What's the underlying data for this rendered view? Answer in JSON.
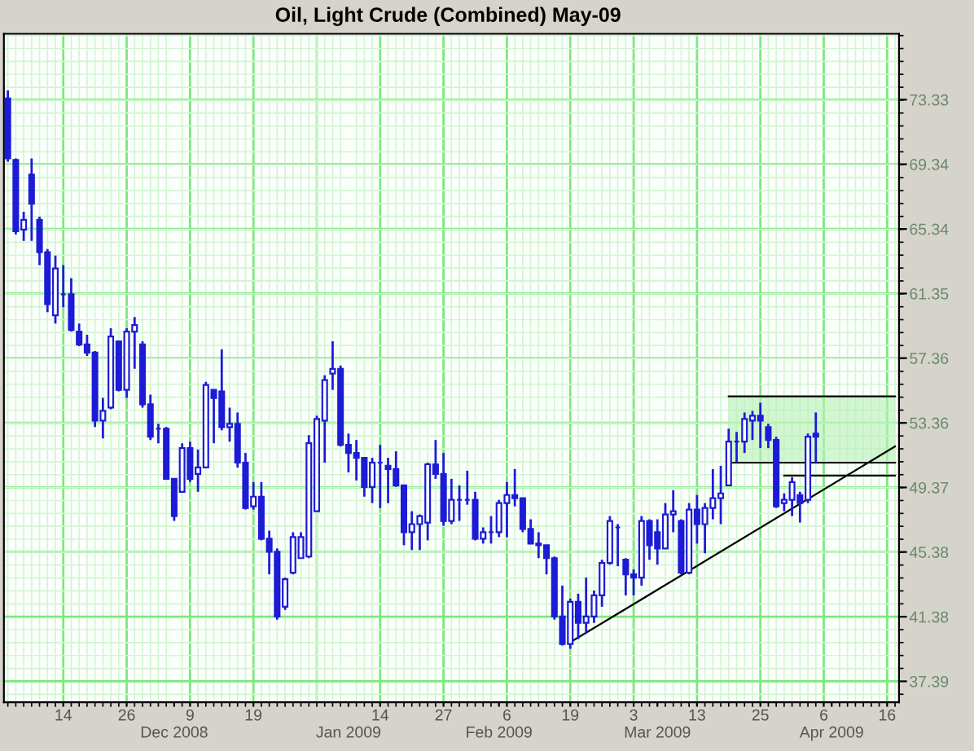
{
  "chart_data": {
    "type": "candlestick",
    "title": "Oil, Light Crude (Combined) May-09",
    "color": "#1c1cd6",
    "categories": [
      null,
      null,
      null,
      null,
      null,
      null,
      null,
      "14",
      null,
      null,
      null,
      null,
      null,
      null,
      null,
      "26",
      null,
      null,
      null,
      null,
      null,
      "\nDec 2008",
      null,
      "9",
      null,
      null,
      null,
      null,
      null,
      null,
      null,
      "19",
      null,
      null,
      null,
      null,
      null,
      null,
      null,
      null,
      null,
      null,
      null,
      "\nJan 2009",
      null,
      null,
      null,
      "14",
      null,
      null,
      null,
      null,
      null,
      null,
      null,
      "27",
      null,
      null,
      null,
      null,
      null,
      null,
      "\nFeb 2009",
      "6",
      null,
      null,
      null,
      null,
      null,
      null,
      null,
      "19",
      null,
      null,
      null,
      null,
      null,
      null,
      null,
      "3",
      null,
      null,
      "\nMar 2009",
      null,
      null,
      null,
      null,
      "13",
      null,
      null,
      null,
      null,
      null,
      null,
      null,
      "25",
      null,
      null,
      null,
      null,
      null,
      null,
      null,
      "6",
      "\nApr 2009",
      null,
      null,
      null,
      null,
      null,
      null,
      "16",
      null
    ],
    "ohlc": [
      [
        73.4,
        73.9,
        69.5,
        69.7
      ],
      [
        69.6,
        69.7,
        65.0,
        65.2
      ],
      [
        65.3,
        66.4,
        64.6,
        65.9
      ],
      [
        68.7,
        69.7,
        64.6,
        66.9
      ],
      [
        65.9,
        66.1,
        63.1,
        63.9
      ],
      [
        63.9,
        64.1,
        60.2,
        60.7
      ],
      [
        60.0,
        63.7,
        59.5,
        62.9
      ],
      [
        61.3,
        63.1,
        60.5,
        61.3
      ],
      [
        61.3,
        62.3,
        59.0,
        59.1
      ],
      [
        59.0,
        59.5,
        58.1,
        58.2
      ],
      [
        58.2,
        58.8,
        57.5,
        57.7
      ],
      [
        57.7,
        57.8,
        53.1,
        53.5
      ],
      [
        53.5,
        54.9,
        52.4,
        54.1
      ],
      [
        54.3,
        59.2,
        54.2,
        58.7
      ],
      [
        58.4,
        58.4,
        55.3,
        55.4
      ],
      [
        55.4,
        59.2,
        54.9,
        59.0
      ],
      [
        59.0,
        59.9,
        56.7,
        59.4
      ],
      [
        58.2,
        58.4,
        54.3,
        54.5
      ],
      [
        54.5,
        55.1,
        52.3,
        52.5
      ],
      [
        53.0,
        53.3,
        52.1,
        53.0
      ],
      [
        53.0,
        53.1,
        49.9,
        49.9
      ],
      [
        49.9,
        49.9,
        47.3,
        47.6
      ],
      [
        49.1,
        52.1,
        49.1,
        51.8
      ],
      [
        51.8,
        52.2,
        49.7,
        49.9
      ],
      [
        50.2,
        51.7,
        49.1,
        50.6
      ],
      [
        50.6,
        55.9,
        50.6,
        55.7
      ],
      [
        55.4,
        55.4,
        52.1,
        54.9
      ],
      [
        55.3,
        57.9,
        52.9,
        53.1
      ],
      [
        53.1,
        54.3,
        52.2,
        53.3
      ],
      [
        53.3,
        54.0,
        50.6,
        50.9
      ],
      [
        50.9,
        51.5,
        48.0,
        48.1
      ],
      [
        48.2,
        49.7,
        48.0,
        48.8
      ],
      [
        48.8,
        49.7,
        46.1,
        46.2
      ],
      [
        46.2,
        46.7,
        44.0,
        45.4
      ],
      [
        45.4,
        45.6,
        41.2,
        41.4
      ],
      [
        42.0,
        43.8,
        41.8,
        43.7
      ],
      [
        44.1,
        46.6,
        44.0,
        46.3
      ],
      [
        45.0,
        46.6,
        45.0,
        46.3
      ],
      [
        45.1,
        52.6,
        45.0,
        52.1
      ],
      [
        47.9,
        53.8,
        47.9,
        53.6
      ],
      [
        53.5,
        56.3,
        50.9,
        56.0
      ],
      [
        56.4,
        58.4,
        55.4,
        56.7
      ],
      [
        56.7,
        56.9,
        51.9,
        52.0
      ],
      [
        52.0,
        52.7,
        50.3,
        51.5
      ],
      [
        51.5,
        52.3,
        49.8,
        51.2
      ],
      [
        51.2,
        51.2,
        48.8,
        49.4
      ],
      [
        49.4,
        51.2,
        48.4,
        50.9
      ],
      [
        50.9,
        52.0,
        48.1,
        50.9
      ],
      [
        50.7,
        51.2,
        48.4,
        50.5
      ],
      [
        50.5,
        51.6,
        49.4,
        49.5
      ],
      [
        49.5,
        49.5,
        45.8,
        46.6
      ],
      [
        46.6,
        47.9,
        45.5,
        47.1
      ],
      [
        47.1,
        47.7,
        45.5,
        47.6
      ],
      [
        47.2,
        50.9,
        46.1,
        50.8
      ],
      [
        50.8,
        52.3,
        49.9,
        50.2
      ],
      [
        50.2,
        51.5,
        47.0,
        47.3
      ],
      [
        47.3,
        49.9,
        47.1,
        48.6
      ],
      [
        48.6,
        49.5,
        47.3,
        48.6
      ],
      [
        48.6,
        50.4,
        48.3,
        48.6
      ],
      [
        48.6,
        49.1,
        46.1,
        46.2
      ],
      [
        46.2,
        46.9,
        45.9,
        46.6
      ],
      [
        46.6,
        47.6,
        45.9,
        46.6
      ],
      [
        46.6,
        48.6,
        46.3,
        48.4
      ],
      [
        48.4,
        49.7,
        46.3,
        48.9
      ],
      [
        48.9,
        50.5,
        48.2,
        48.7
      ],
      [
        48.7,
        48.7,
        46.6,
        46.8
      ],
      [
        46.8,
        47.4,
        45.9,
        45.9
      ],
      [
        45.9,
        46.6,
        45.0,
        45.8
      ],
      [
        45.8,
        45.8,
        44.0,
        45.0
      ],
      [
        45.0,
        45.1,
        41.2,
        41.4
      ],
      [
        41.4,
        43.3,
        39.6,
        39.7
      ],
      [
        39.7,
        42.5,
        39.4,
        42.3
      ],
      [
        42.3,
        42.8,
        40.0,
        41.0
      ],
      [
        41.0,
        43.8,
        40.4,
        41.4
      ],
      [
        41.4,
        43.0,
        41.0,
        42.7
      ],
      [
        42.7,
        44.9,
        42.0,
        44.7
      ],
      [
        44.7,
        47.6,
        44.6,
        47.3
      ],
      [
        46.9,
        47.1,
        44.5,
        46.9
      ],
      [
        44.9,
        45.0,
        42.7,
        44.0
      ],
      [
        44.0,
        44.3,
        42.7,
        43.8
      ],
      [
        43.8,
        47.6,
        43.3,
        47.3
      ],
      [
        47.3,
        47.4,
        44.9,
        45.8
      ],
      [
        46.6,
        47.4,
        44.6,
        45.6
      ],
      [
        45.6,
        48.4,
        45.6,
        47.7
      ],
      [
        47.7,
        49.2,
        46.6,
        47.9
      ],
      [
        47.3,
        47.4,
        44.0,
        44.1
      ],
      [
        44.1,
        48.4,
        44.0,
        48.0
      ],
      [
        48.0,
        48.9,
        45.9,
        47.1
      ],
      [
        47.1,
        48.4,
        45.3,
        48.1
      ],
      [
        48.1,
        50.5,
        47.4,
        48.7
      ],
      [
        48.7,
        50.7,
        47.1,
        49.0
      ],
      [
        49.5,
        53.0,
        49.5,
        52.2
      ],
      [
        52.2,
        52.8,
        50.9,
        52.2
      ],
      [
        52.2,
        54.0,
        51.5,
        53.6
      ],
      [
        53.5,
        54.1,
        52.3,
        53.8
      ],
      [
        53.8,
        54.6,
        51.8,
        53.5
      ],
      [
        53.1,
        53.3,
        51.8,
        52.3
      ],
      [
        52.3,
        52.5,
        48.1,
        48.2
      ],
      [
        48.4,
        49.0,
        47.9,
        48.6
      ],
      [
        48.6,
        50.0,
        47.6,
        49.7
      ],
      [
        48.9,
        49.1,
        47.2,
        48.4
      ],
      [
        48.6,
        52.7,
        48.4,
        52.5
      ],
      [
        52.7,
        54.0,
        50.9,
        52.5
      ],
      null,
      null,
      null,
      null,
      null,
      null,
      null,
      null,
      null,
      null
    ],
    "series": [
      {
        "type": "line",
        "color": "#000000",
        "values": [
          null,
          null,
          null,
          null,
          null,
          null,
          null,
          null,
          null,
          null,
          null,
          null,
          null,
          null,
          null,
          null,
          null,
          null,
          null,
          null,
          null,
          null,
          null,
          null,
          null,
          null,
          null,
          null,
          null,
          null,
          null,
          null,
          null,
          null,
          null,
          null,
          null,
          null,
          null,
          null,
          null,
          null,
          null,
          null,
          null,
          null,
          null,
          null,
          null,
          null,
          null,
          null,
          null,
          null,
          null,
          null,
          null,
          null,
          null,
          null,
          null,
          null,
          null,
          null,
          null,
          null,
          null,
          null,
          null,
          null,
          null,
          39.8,
          null,
          null,
          null,
          null,
          null,
          null,
          null,
          null,
          null,
          null,
          null,
          null,
          null,
          null,
          null,
          null,
          null,
          null,
          null,
          null,
          null,
          null,
          null,
          null,
          null,
          null,
          null,
          null,
          null,
          null,
          null,
          null,
          null,
          null,
          null,
          null,
          null,
          null,
          null,
          null,
          51.9
        ]
      },
      {
        "type": "line",
        "color": "#000000",
        "values": [
          null,
          null,
          null,
          null,
          null,
          null,
          null,
          null,
          null,
          null,
          null,
          null,
          null,
          null,
          null,
          null,
          null,
          null,
          null,
          null,
          null,
          null,
          null,
          null,
          null,
          null,
          null,
          null,
          null,
          null,
          null,
          null,
          null,
          null,
          null,
          null,
          null,
          null,
          null,
          null,
          null,
          null,
          null,
          null,
          null,
          null,
          null,
          null,
          null,
          null,
          null,
          null,
          null,
          null,
          null,
          null,
          null,
          null,
          null,
          null,
          null,
          null,
          null,
          null,
          null,
          null,
          null,
          null,
          null,
          null,
          null,
          null,
          null,
          null,
          null,
          null,
          null,
          null,
          null,
          null,
          null,
          null,
          null,
          null,
          null,
          null,
          null,
          null,
          null,
          null,
          null,
          55.0,
          null,
          null,
          null,
          null,
          null,
          null,
          null,
          null,
          null,
          null,
          null,
          null,
          null,
          null,
          null,
          null,
          null,
          null,
          null,
          null,
          55.0
        ],
        "lower": [
          null,
          null,
          null,
          null,
          null,
          null,
          null,
          null,
          null,
          null,
          null,
          null,
          null,
          null,
          null,
          null,
          null,
          null,
          null,
          null,
          null,
          null,
          null,
          null,
          null,
          null,
          null,
          null,
          null,
          null,
          null,
          null,
          null,
          null,
          null,
          null,
          null,
          null,
          null,
          null,
          null,
          null,
          null,
          null,
          null,
          null,
          null,
          null,
          null,
          null,
          null,
          null,
          null,
          null,
          null,
          null,
          null,
          null,
          null,
          null,
          null,
          null,
          null,
          null,
          null,
          null,
          null,
          null,
          null,
          null,
          null,
          null,
          null,
          null,
          null,
          null,
          null,
          null,
          null,
          null,
          null,
          null,
          null,
          null,
          null,
          null,
          null,
          null,
          null,
          null,
          null,
          50.9,
          null,
          null,
          null,
          null,
          null,
          null,
          null,
          null,
          null,
          null,
          null,
          null,
          null,
          null,
          null,
          null,
          null,
          null,
          null,
          null,
          50.9
        ],
        "upper": [
          null,
          null,
          null,
          null,
          null,
          null,
          null,
          null,
          null,
          null,
          null,
          null,
          null,
          null,
          null,
          null,
          null,
          null,
          null,
          null,
          null,
          null,
          null,
          null,
          null,
          null,
          null,
          null,
          null,
          null,
          null,
          null,
          null,
          null,
          null,
          null,
          null,
          null,
          null,
          null,
          null,
          null,
          null,
          null,
          null,
          null,
          null,
          null,
          null,
          null,
          null,
          null,
          null,
          null,
          null,
          null,
          null,
          null,
          null,
          null,
          null,
          null,
          null,
          null,
          null,
          null,
          null,
          null,
          null,
          null,
          null,
          null,
          null,
          null,
          null,
          null,
          null,
          null,
          null,
          null,
          null,
          null,
          null,
          null,
          null,
          null,
          null,
          null,
          null,
          null,
          null,
          55.0,
          null,
          null,
          null,
          null,
          null,
          null,
          null,
          null,
          null,
          null,
          null,
          null,
          null,
          null,
          null,
          null,
          null,
          null,
          null,
          null,
          55.0
        ]
      },
      {
        "type": "line",
        "color": "#000000",
        "values": [
          null,
          null,
          null,
          null,
          null,
          null,
          null,
          null,
          null,
          null,
          null,
          null,
          null,
          null,
          null,
          null,
          null,
          null,
          null,
          null,
          null,
          null,
          null,
          null,
          null,
          null,
          null,
          null,
          null,
          null,
          null,
          null,
          null,
          null,
          null,
          null,
          null,
          null,
          null,
          null,
          null,
          null,
          null,
          null,
          null,
          null,
          null,
          null,
          null,
          null,
          null,
          null,
          null,
          null,
          null,
          null,
          null,
          null,
          null,
          null,
          null,
          null,
          null,
          null,
          null,
          null,
          null,
          null,
          null,
          null,
          null,
          null,
          null,
          null,
          null,
          null,
          null,
          null,
          null,
          null,
          null,
          null,
          null,
          null,
          null,
          null,
          null,
          null,
          null,
          null,
          null,
          50.9,
          null,
          null,
          null,
          null,
          null,
          null,
          null,
          null,
          null,
          null,
          null,
          null,
          null,
          null,
          null,
          null,
          null,
          null,
          null,
          null,
          50.9
        ]
      },
      {
        "type": "line",
        "color": "#000000",
        "values": [
          null,
          null,
          null,
          null,
          null,
          null,
          null,
          null,
          null,
          null,
          null,
          null,
          null,
          null,
          null,
          null,
          null,
          null,
          null,
          null,
          null,
          null,
          null,
          null,
          null,
          null,
          null,
          null,
          null,
          null,
          null,
          null,
          null,
          null,
          null,
          null,
          null,
          null,
          null,
          null,
          null,
          null,
          null,
          null,
          null,
          null,
          null,
          null,
          null,
          null,
          null,
          null,
          null,
          null,
          null,
          null,
          null,
          null,
          null,
          null,
          null,
          null,
          null,
          null,
          null,
          null,
          null,
          null,
          null,
          null,
          null,
          null,
          null,
          null,
          null,
          null,
          null,
          null,
          null,
          null,
          null,
          null,
          null,
          null,
          null,
          null,
          null,
          null,
          null,
          null,
          null,
          null,
          null,
          null,
          null,
          null,
          null,
          null,
          50.1,
          null,
          null,
          null,
          null,
          null,
          null,
          null,
          null,
          null,
          null,
          null,
          null,
          null,
          50.1
        ]
      }
    ],
    "ylim": [
      36.1,
      77.4
    ],
    "yticks": [
      37.39,
      41.38,
      45.38,
      49.37,
      53.36,
      57.36,
      61.35,
      65.34,
      69.34,
      73.33
    ],
    "grid": true
  }
}
